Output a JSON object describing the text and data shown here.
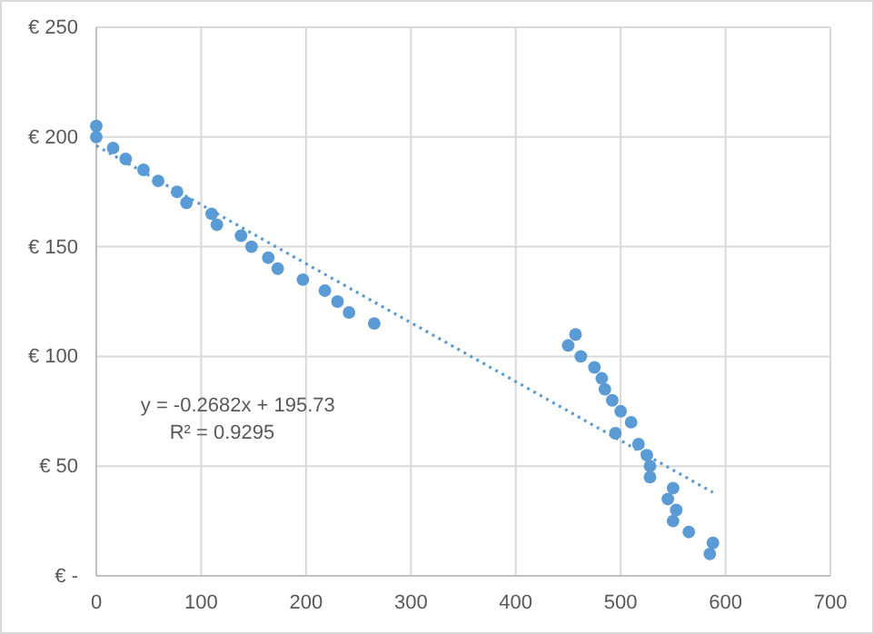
{
  "chart_data": {
    "type": "scatter",
    "xlim": [
      0,
      700
    ],
    "ylim": [
      0,
      250
    ],
    "xticks": [
      0,
      100,
      200,
      300,
      400,
      500,
      600,
      700
    ],
    "yticks": [
      {
        "value": 0,
        "label": "€ -"
      },
      {
        "value": 50,
        "label": "€ 50"
      },
      {
        "value": 100,
        "label": "€ 100"
      },
      {
        "value": 150,
        "label": "€ 150"
      },
      {
        "value": 200,
        "label": "€ 200"
      },
      {
        "value": 250,
        "label": "€ 250"
      }
    ],
    "grid": true,
    "annotations": [
      "y = -0.2682x + 195.73",
      "R² = 0.9295"
    ],
    "series": [
      {
        "marker": "circle",
        "color": "#5b9bd5",
        "x": [
          0,
          0,
          16,
          28,
          45,
          59,
          77,
          86,
          110,
          115,
          138,
          148,
          164,
          173,
          197,
          218,
          230,
          241,
          265,
          450,
          457,
          462,
          475,
          482,
          485,
          492,
          495,
          500,
          510,
          517,
          525,
          528,
          528,
          545,
          550,
          550,
          553,
          565,
          585,
          588
        ],
        "values": [
          205,
          200,
          195,
          190,
          185,
          180,
          175,
          170,
          165,
          160,
          155,
          150,
          145,
          140,
          135,
          130,
          125,
          120,
          115,
          105,
          110,
          100,
          95,
          90,
          85,
          80,
          65,
          75,
          70,
          60,
          55,
          50,
          45,
          35,
          40,
          25,
          30,
          20,
          10,
          15
        ]
      },
      {
        "type": "line",
        "color": "#5b9bd5",
        "line_style": "dotted",
        "x": [
          0,
          588
        ],
        "values": [
          196,
          38
        ]
      }
    ]
  }
}
